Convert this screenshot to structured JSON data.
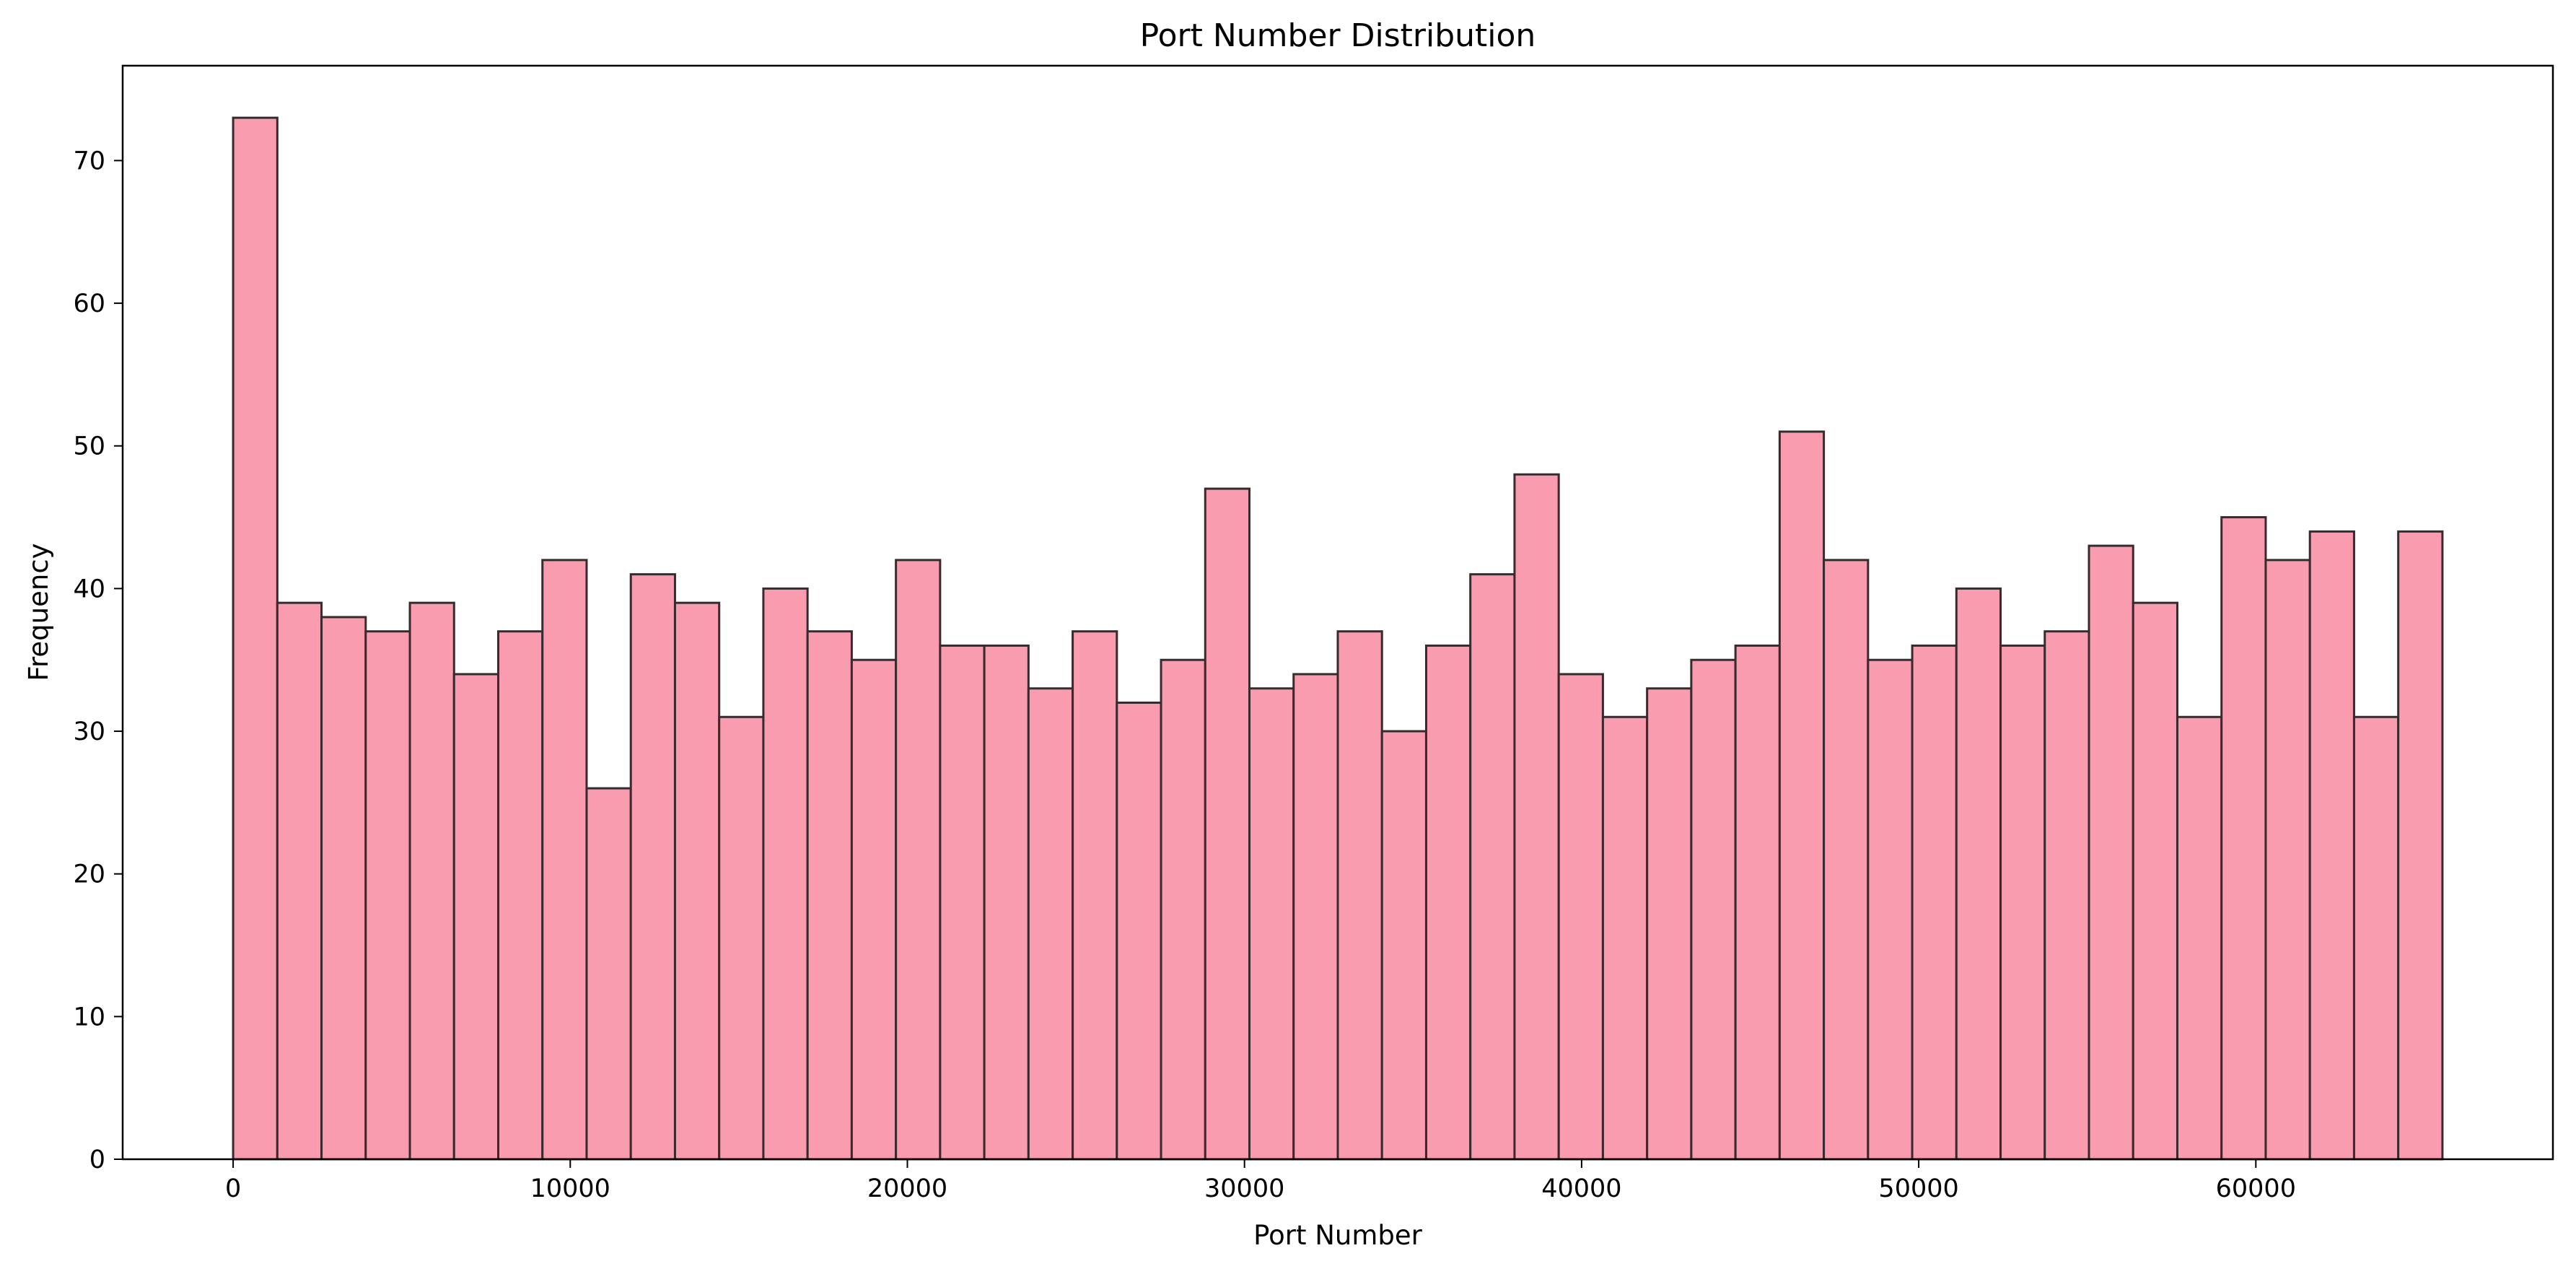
{
  "chart_data": {
    "type": "bar",
    "title": "Port Number Distribution",
    "xlabel": "Port Number",
    "ylabel": "Frequency",
    "xlim": [
      -3276.75,
      68811.75
    ],
    "ylim": [
      0,
      76.65
    ],
    "x_ticks": [
      0,
      10000,
      20000,
      30000,
      40000,
      50000,
      60000
    ],
    "y_ticks": [
      0,
      10,
      20,
      30,
      40,
      50,
      60,
      70
    ],
    "bin_range": [
      0,
      65535
    ],
    "bins": 50,
    "values": [
      73,
      39,
      38,
      37,
      39,
      34,
      37,
      42,
      26,
      41,
      39,
      31,
      40,
      37,
      35,
      42,
      36,
      36,
      33,
      37,
      32,
      35,
      47,
      33,
      34,
      37,
      30,
      36,
      41,
      48,
      34,
      31,
      33,
      35,
      36,
      51,
      42,
      35,
      36,
      40,
      36,
      37,
      43,
      39,
      31,
      45,
      42,
      44,
      31,
      44
    ],
    "bar_color": "#f99cb0",
    "edge_color": "#3a2a2d",
    "grid": false,
    "legend": "none"
  }
}
